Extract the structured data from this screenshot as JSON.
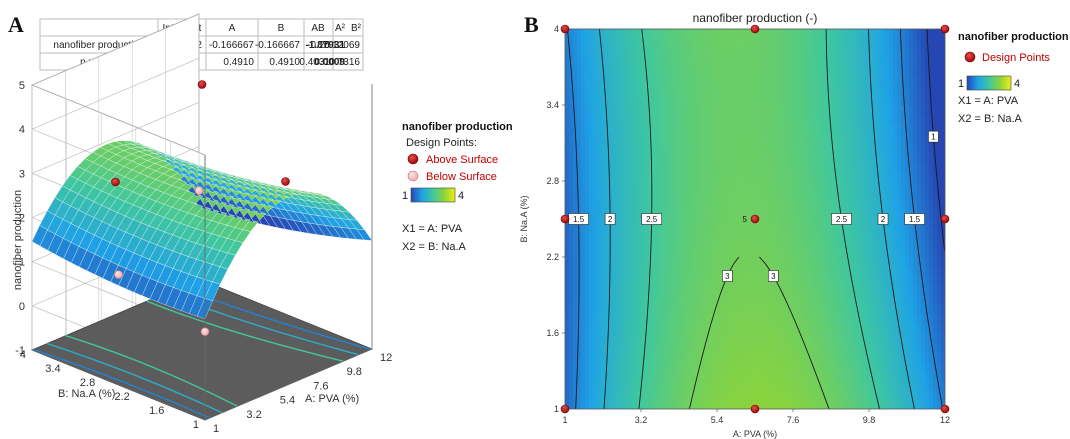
{
  "panels": {
    "A": {
      "letter": "A",
      "table": {
        "header": [
          "",
          "Intercept",
          "A",
          "B",
          "AB",
          "A²",
          "B²"
        ],
        "rows": [
          [
            "nanofiber production",
            "2.96552",
            "-0.166667",
            "-0.166667",
            "-0.25",
            "-1.87931",
            "0.12069"
          ],
          [
            "p-values",
            "",
            "0.4910",
            "0.4910",
            "0.4031",
            "0.0009",
            "0.7316"
          ]
        ],
        "bold_cells": [
          [
            0,
            5
          ],
          [
            1,
            5
          ]
        ]
      },
      "legend": {
        "title": "nanofiber production",
        "subtitle": "Design Points:",
        "above": "Above Surface",
        "below": "Below Surface",
        "scale_min": "1",
        "scale_max": "4",
        "x1": "X1 = A: PVA",
        "x2": "X2 = B: Na.A"
      }
    },
    "B": {
      "letter": "B",
      "legend": {
        "title": "nanofiber production",
        "points": "Design Points",
        "scale_min": "1",
        "scale_max": "4",
        "x1": "X1 = A: PVA",
        "x2": "X2 = B: Na.A"
      }
    }
  },
  "chart_data": [
    {
      "type": "surface",
      "title": "",
      "xlabel": "A: PVA (%)",
      "ylabel": "B: Na.A (%)",
      "zlabel": "nanofiber production",
      "x_ticks": [
        "1",
        "3.2",
        "5.4",
        "7.6",
        "9.8",
        "12"
      ],
      "y_ticks": [
        "1",
        "1.6",
        "2.2",
        "2.8",
        "3.4",
        "4"
      ],
      "z_ticks": [
        "-1",
        "0",
        "1",
        "2",
        "3",
        "4",
        "5"
      ],
      "xlim": [
        1,
        12
      ],
      "ylim": [
        1,
        4
      ],
      "zlim": [
        -1,
        5
      ],
      "model": {
        "intercept": 2.96552,
        "A": -0.166667,
        "B": -0.166667,
        "AB": -0.25,
        "A2": -1.87931,
        "B2": 0.12069
      },
      "design_points": [
        {
          "x": 1,
          "y": 1,
          "z": 1,
          "position": "below"
        },
        {
          "x": 1,
          "y": 2.5,
          "z": 1.5,
          "position": "below"
        },
        {
          "x": 6.5,
          "y": 2.5,
          "z": 5,
          "position": "above"
        },
        {
          "x": 6.5,
          "y": 4,
          "z": 2,
          "position": "above"
        },
        {
          "x": 12,
          "y": 4,
          "z": 1,
          "position": "below"
        },
        {
          "x": 12,
          "y": 2.5,
          "z": 2,
          "position": "above"
        }
      ],
      "color_scale": {
        "min": 1,
        "max": 4,
        "colors": [
          "#2646b4",
          "#1fa2e6",
          "#3fc79f",
          "#8bd33c",
          "#f0ee14"
        ]
      }
    },
    {
      "type": "contour",
      "title": "nanofiber production (-)",
      "xlabel": "A: PVA (%)",
      "ylabel": "B: Na.A (%)",
      "x_ticks": [
        "1",
        "3.2",
        "5.4",
        "7.6",
        "9.8",
        "12"
      ],
      "y_ticks": [
        "1",
        "1.6",
        "2.2",
        "2.8",
        "3.4",
        "4"
      ],
      "xlim": [
        1,
        12
      ],
      "ylim": [
        1,
        4
      ],
      "contour_levels": [
        "1",
        "1.5",
        "2",
        "2.5",
        "3"
      ],
      "labeled_point": {
        "x": 6.5,
        "y": 2.5,
        "label": "5"
      },
      "design_points": [
        {
          "x": 1,
          "y": 1
        },
        {
          "x": 1,
          "y": 2.5
        },
        {
          "x": 1,
          "y": 4
        },
        {
          "x": 6.5,
          "y": 1
        },
        {
          "x": 6.5,
          "y": 2.5
        },
        {
          "x": 6.5,
          "y": 4
        },
        {
          "x": 12,
          "y": 1
        },
        {
          "x": 12,
          "y": 2.5
        },
        {
          "x": 12,
          "y": 4
        }
      ],
      "color_scale": {
        "min": 1,
        "max": 4,
        "colors": [
          "#2646b4",
          "#1fa2e6",
          "#3fc79f",
          "#8bd33c",
          "#f0ee14"
        ]
      }
    }
  ]
}
